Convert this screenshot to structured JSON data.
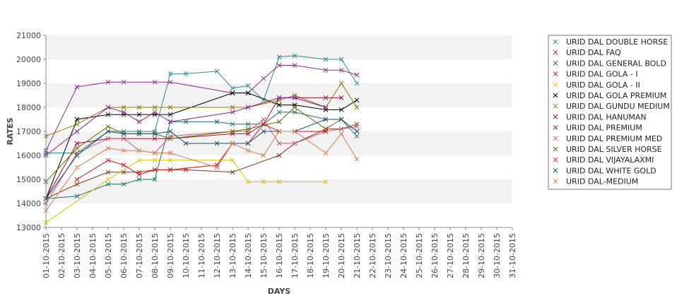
{
  "chart_data": {
    "type": "line",
    "title": "",
    "xlabel": "DAYS",
    "ylabel": "RATES",
    "ylim": [
      13000,
      21000
    ],
    "yticks": [
      13000,
      14000,
      15000,
      16000,
      17000,
      18000,
      19000,
      20000,
      21000
    ],
    "grid": "alternating horizontal bands",
    "legend_position": "right",
    "categories": [
      "01-10-2015",
      "02-10-2015",
      "03-10-2015",
      "04-10-2015",
      "05-10-2015",
      "06-10-2015",
      "07-10-2015",
      "08-10-2015",
      "09-10-2015",
      "10-10-2015",
      "11-10-2015",
      "12-10-2015",
      "13-10-2015",
      "14-10-2015",
      "15-10-2015",
      "16-10-2015",
      "17-10-2015",
      "18-10-2015",
      "19-10-2015",
      "20-10-2015",
      "21-10-2015",
      "22-10-2015",
      "23-10-2015",
      "24-10-2015",
      "25-10-2015",
      "26-10-2015",
      "27-10-2015",
      "28-10-2015",
      "29-10-2015",
      "30-10-2015",
      "31-10-2015"
    ],
    "series": [
      {
        "name": "URID DAL DOUBLE HORSE",
        "color": "#2e8b8b",
        "points": [
          [
            0,
            16100
          ],
          [
            2,
            16100
          ],
          [
            4,
            17000
          ],
          [
            5,
            17000
          ],
          [
            6,
            17000
          ],
          [
            7,
            17000
          ],
          [
            8,
            19400
          ],
          [
            9,
            19400
          ],
          [
            11,
            19500
          ],
          [
            12,
            18800
          ],
          [
            13,
            18900
          ],
          [
            14,
            18300
          ],
          [
            15,
            20100
          ],
          [
            16,
            20150
          ],
          [
            18,
            20000
          ],
          [
            19,
            20000
          ],
          [
            20,
            19000
          ]
        ]
      },
      {
        "name": "URID DAL FAQ",
        "color": "#8b2e14",
        "points": [
          [
            0,
            14200
          ],
          [
            2,
            14800
          ],
          [
            4,
            15300
          ],
          [
            5,
            15300
          ],
          [
            6,
            15300
          ],
          [
            7,
            15400
          ],
          [
            8,
            15400
          ],
          [
            9,
            15400
          ],
          [
            12,
            15300
          ],
          [
            15,
            16000
          ],
          [
            16,
            16500
          ],
          [
            18,
            17100
          ],
          [
            19,
            17100
          ],
          [
            20,
            17300
          ]
        ]
      },
      {
        "name": "URID DAL GENERAL BOLD",
        "color": "#1f6b6b",
        "points": [
          [
            0,
            14200
          ],
          [
            2,
            14300
          ],
          [
            4,
            14800
          ],
          [
            5,
            14800
          ],
          [
            6,
            15000
          ],
          [
            7,
            15000
          ],
          [
            8,
            17400
          ],
          [
            9,
            17400
          ],
          [
            11,
            17400
          ],
          [
            12,
            17300
          ],
          [
            13,
            17300
          ],
          [
            14,
            17300
          ],
          [
            15,
            17800
          ],
          [
            16,
            17800
          ],
          [
            18,
            17500
          ],
          [
            19,
            17500
          ],
          [
            20,
            16800
          ]
        ]
      },
      {
        "name": "URID DAL GOLA - I",
        "color": "#8b2e8b",
        "points": [
          [
            0,
            16200
          ],
          [
            2,
            18850
          ],
          [
            4,
            19050
          ],
          [
            5,
            19050
          ],
          [
            7,
            19050
          ],
          [
            8,
            19050
          ],
          [
            12,
            18600
          ],
          [
            13,
            18600
          ],
          [
            14,
            19200
          ],
          [
            15,
            19750
          ],
          [
            16,
            19750
          ],
          [
            18,
            19550
          ],
          [
            19,
            19550
          ],
          [
            20,
            19350
          ]
        ]
      },
      {
        "name": "URID DAL GOLA - II",
        "color": "#e0c000",
        "points": [
          [
            0,
            13200
          ],
          [
            4,
            15000
          ],
          [
            6,
            15800
          ],
          [
            7,
            15800
          ],
          [
            8,
            15800
          ],
          [
            12,
            15800
          ],
          [
            13,
            14900
          ],
          [
            14,
            14900
          ],
          [
            15,
            14900
          ],
          [
            18,
            14900
          ]
        ]
      },
      {
        "name": "URID DAL GOLA PREMIUM",
        "color": "#000000",
        "points": [
          [
            0,
            14200
          ],
          [
            2,
            17500
          ],
          [
            4,
            17700
          ],
          [
            5,
            17700
          ],
          [
            6,
            17700
          ],
          [
            7,
            17700
          ],
          [
            8,
            17700
          ],
          [
            12,
            18600
          ],
          [
            13,
            18600
          ],
          [
            15,
            18100
          ],
          [
            16,
            18100
          ],
          [
            18,
            17900
          ],
          [
            19,
            17900
          ],
          [
            20,
            18300
          ]
        ]
      },
      {
        "name": "URID DAL GUNDU MEDIUM",
        "color": "#8b7a00",
        "points": [
          [
            0,
            16800
          ],
          [
            2,
            17300
          ],
          [
            4,
            18000
          ],
          [
            5,
            18000
          ],
          [
            6,
            18000
          ],
          [
            7,
            18000
          ],
          [
            8,
            18000
          ],
          [
            12,
            18000
          ],
          [
            13,
            18000
          ],
          [
            15,
            18300
          ],
          [
            16,
            18500
          ],
          [
            18,
            18000
          ],
          [
            19,
            19000
          ],
          [
            20,
            18000
          ]
        ]
      },
      {
        "name": "URID DAL HANUMAN",
        "color": "#a01040",
        "points": [
          [
            0,
            14200
          ],
          [
            2,
            16500
          ],
          [
            4,
            16700
          ],
          [
            5,
            16700
          ],
          [
            7,
            16700
          ],
          [
            8,
            16700
          ],
          [
            12,
            16900
          ],
          [
            13,
            16900
          ],
          [
            14,
            17300
          ],
          [
            15,
            18400
          ],
          [
            16,
            18400
          ],
          [
            18,
            18400
          ],
          [
            19,
            18400
          ]
        ]
      },
      {
        "name": "URID DAL PREMIUM",
        "color": "#8b1f8b",
        "points": [
          [
            0,
            16000
          ],
          [
            2,
            17000
          ],
          [
            4,
            18000
          ],
          [
            5,
            17800
          ],
          [
            6,
            17400
          ],
          [
            7,
            17800
          ],
          [
            8,
            17400
          ],
          [
            12,
            17800
          ],
          [
            13,
            18000
          ],
          [
            15,
            18400
          ],
          [
            16,
            18400
          ],
          [
            18,
            18000
          ]
        ]
      },
      {
        "name": "URID DAL PREMIUM MED",
        "color": "#c06070",
        "points": [
          [
            0,
            14000
          ],
          [
            2,
            16100
          ],
          [
            4,
            16700
          ],
          [
            5,
            16700
          ],
          [
            6,
            16200
          ],
          [
            7,
            16100
          ],
          [
            8,
            16800
          ],
          [
            12,
            17000
          ],
          [
            13,
            17000
          ],
          [
            14,
            17500
          ],
          [
            15,
            16500
          ],
          [
            16,
            16500
          ],
          [
            18,
            17000
          ],
          [
            19,
            17100
          ],
          [
            20,
            17200
          ]
        ]
      },
      {
        "name": "URID DAL SILVER HORSE",
        "color": "#6b6b00",
        "points": [
          [
            0,
            14900
          ],
          [
            2,
            16300
          ],
          [
            4,
            17200
          ],
          [
            5,
            16900
          ],
          [
            6,
            16900
          ],
          [
            7,
            16900
          ],
          [
            8,
            16700
          ],
          [
            12,
            17000
          ],
          [
            13,
            17100
          ],
          [
            15,
            17400
          ],
          [
            16,
            18000
          ],
          [
            18,
            17100
          ],
          [
            19,
            17500
          ],
          [
            20,
            17000
          ]
        ]
      },
      {
        "name": "URID DAL VIJAYALAXMI",
        "color": "#d01818",
        "points": [
          [
            2,
            15000
          ],
          [
            4,
            15800
          ],
          [
            5,
            15600
          ],
          [
            6,
            15200
          ],
          [
            7,
            15400
          ],
          [
            8,
            15400
          ],
          [
            11,
            15600
          ],
          [
            12,
            16500
          ],
          [
            13,
            16500
          ],
          [
            14,
            17300
          ],
          [
            15,
            17000
          ],
          [
            16,
            17000
          ],
          [
            18,
            17000
          ]
        ]
      },
      {
        "name": "URID DAL WHITE GOLD",
        "color": "#1f4f6b",
        "points": [
          [
            0,
            14200
          ],
          [
            2,
            16000
          ],
          [
            4,
            17000
          ],
          [
            5,
            16900
          ],
          [
            6,
            16900
          ],
          [
            7,
            16900
          ],
          [
            8,
            17000
          ],
          [
            9,
            16500
          ],
          [
            11,
            16500
          ],
          [
            12,
            16500
          ],
          [
            13,
            16500
          ],
          [
            14,
            17000
          ],
          [
            15,
            17000
          ],
          [
            16,
            17000
          ],
          [
            18,
            17500
          ],
          [
            19,
            17500
          ],
          [
            20,
            17000
          ]
        ]
      },
      {
        "name": "URID DAL-MEDIUM",
        "color": "#d08050",
        "points": [
          [
            0,
            13700
          ],
          [
            2,
            15500
          ],
          [
            4,
            16300
          ],
          [
            5,
            16200
          ],
          [
            6,
            16200
          ],
          [
            7,
            16100
          ],
          [
            8,
            16100
          ],
          [
            11,
            15500
          ],
          [
            12,
            16500
          ],
          [
            13,
            16200
          ],
          [
            14,
            16000
          ],
          [
            15,
            17000
          ],
          [
            16,
            17000
          ],
          [
            18,
            16100
          ],
          [
            19,
            16900
          ],
          [
            20,
            15850
          ]
        ]
      }
    ]
  }
}
